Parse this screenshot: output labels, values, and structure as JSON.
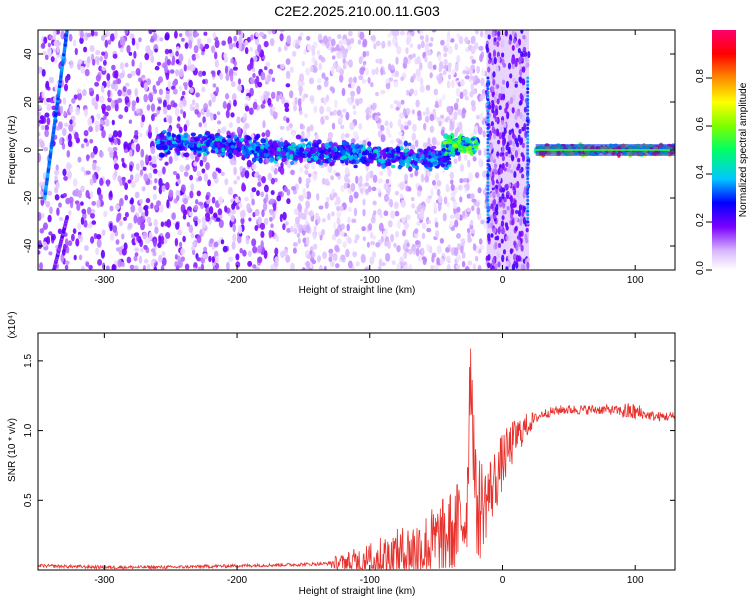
{
  "title": "C2E2.2025.210.00.11.G03",
  "chart_data": [
    {
      "type": "heatmap",
      "xlabel": "Height of straight line (km)",
      "ylabel": "Frequency (Hz)",
      "xlim": [
        -350,
        130
      ],
      "ylim": [
        -50,
        50
      ],
      "x_ticks": [
        -300,
        -200,
        -100,
        0,
        100
      ],
      "y_ticks": [
        -40,
        -20,
        0,
        20,
        40
      ],
      "colorbar": {
        "label": "Normalized spectral amplitude",
        "ticks": [
          0.0,
          0.2,
          0.4,
          0.6,
          0.8
        ],
        "range": [
          0,
          1
        ],
        "colors": [
          "#ffffff",
          "#d9b8ff",
          "#7a00ff",
          "#0000ff",
          "#00c8ff",
          "#00ff66",
          "#7dff00",
          "#ffff00",
          "#ff8c00",
          "#ff0000",
          "#ff006e"
        ]
      },
      "features": [
        {
          "name": "noise",
          "x_range": [
            -350,
            -12
          ],
          "freq_range": [
            -50,
            50
          ],
          "amplitude": 0.15
        },
        {
          "name": "streak",
          "x": [
            -345,
            -328
          ],
          "freq": [
            -20,
            50
          ],
          "amplitude": 0.3
        },
        {
          "name": "streak",
          "x": [
            -338,
            -328
          ],
          "freq": [
            -50,
            -28
          ],
          "amplitude": 0.15
        },
        {
          "name": "band",
          "x_range": [
            -260,
            -40
          ],
          "freq_center": [
            3,
            -4
          ],
          "amplitude": 0.35
        },
        {
          "name": "band",
          "x_range": [
            -45,
            -18
          ],
          "freq_center": [
            2,
            2
          ],
          "amplitude": 0.5
        },
        {
          "name": "strip",
          "x_range": [
            -12,
            20
          ],
          "freq_range": [
            -50,
            50
          ],
          "amplitude": 0.15
        },
        {
          "name": "band",
          "x_range": [
            25,
            130
          ],
          "freq_center": [
            0,
            0
          ],
          "amplitude": 0.75
        }
      ]
    },
    {
      "type": "line",
      "xlabel": "Height of straight line (km)",
      "ylabel": "SNR (10 * v/v)",
      "y_multiplier": "(x10⁴)",
      "xlim": [
        -350,
        130
      ],
      "ylim": [
        0,
        1.7
      ],
      "x_ticks": [
        -300,
        -200,
        -100,
        0,
        100
      ],
      "y_ticks": [
        0.5,
        1.0,
        1.5
      ],
      "color": "#e8312c",
      "series": [
        {
          "x": [
            -350,
            -300,
            -250,
            -200,
            -150,
            -120,
            -100,
            -80,
            -60,
            -45,
            -35,
            -27,
            -24,
            -20,
            -15,
            -10,
            -5,
            0,
            10,
            20,
            30,
            45,
            60,
            80,
            100,
            115,
            130
          ],
          "y": [
            0.03,
            0.02,
            0.02,
            0.03,
            0.04,
            0.05,
            0.07,
            0.1,
            0.15,
            0.22,
            0.3,
            0.4,
            1.55,
            0.45,
            0.45,
            0.55,
            0.65,
            0.78,
            0.95,
            1.05,
            1.12,
            1.15,
            1.15,
            1.15,
            1.13,
            1.1,
            1.1
          ]
        }
      ]
    }
  ]
}
